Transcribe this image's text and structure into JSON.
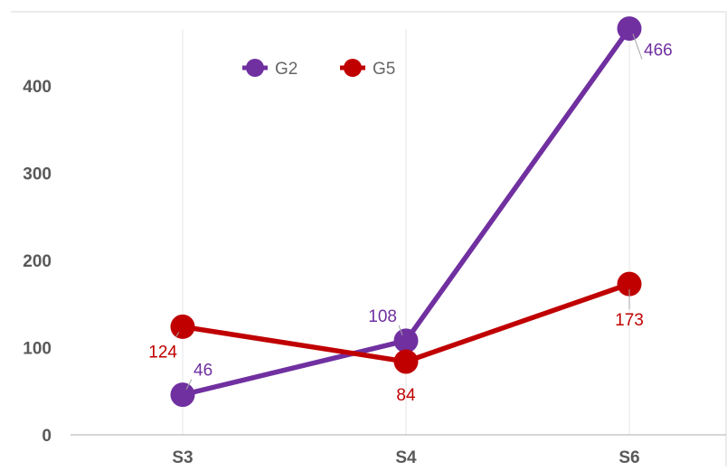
{
  "chart_data": {
    "type": "line",
    "categories": [
      "S3",
      "S4",
      "S6"
    ],
    "series": [
      {
        "name": "G2",
        "values": [
          46,
          108,
          466
        ],
        "color": "#7030A0"
      },
      {
        "name": "G5",
        "values": [
          124,
          84,
          173
        ],
        "color": "#C00000"
      }
    ],
    "yticks": [
      "0",
      "100",
      "200",
      "300",
      "400"
    ],
    "ylim": [
      0,
      450
    ],
    "grid": {
      "vertical": true,
      "horizontal": false
    },
    "legend": {
      "placement": "top-center"
    },
    "data_labels": true
  }
}
